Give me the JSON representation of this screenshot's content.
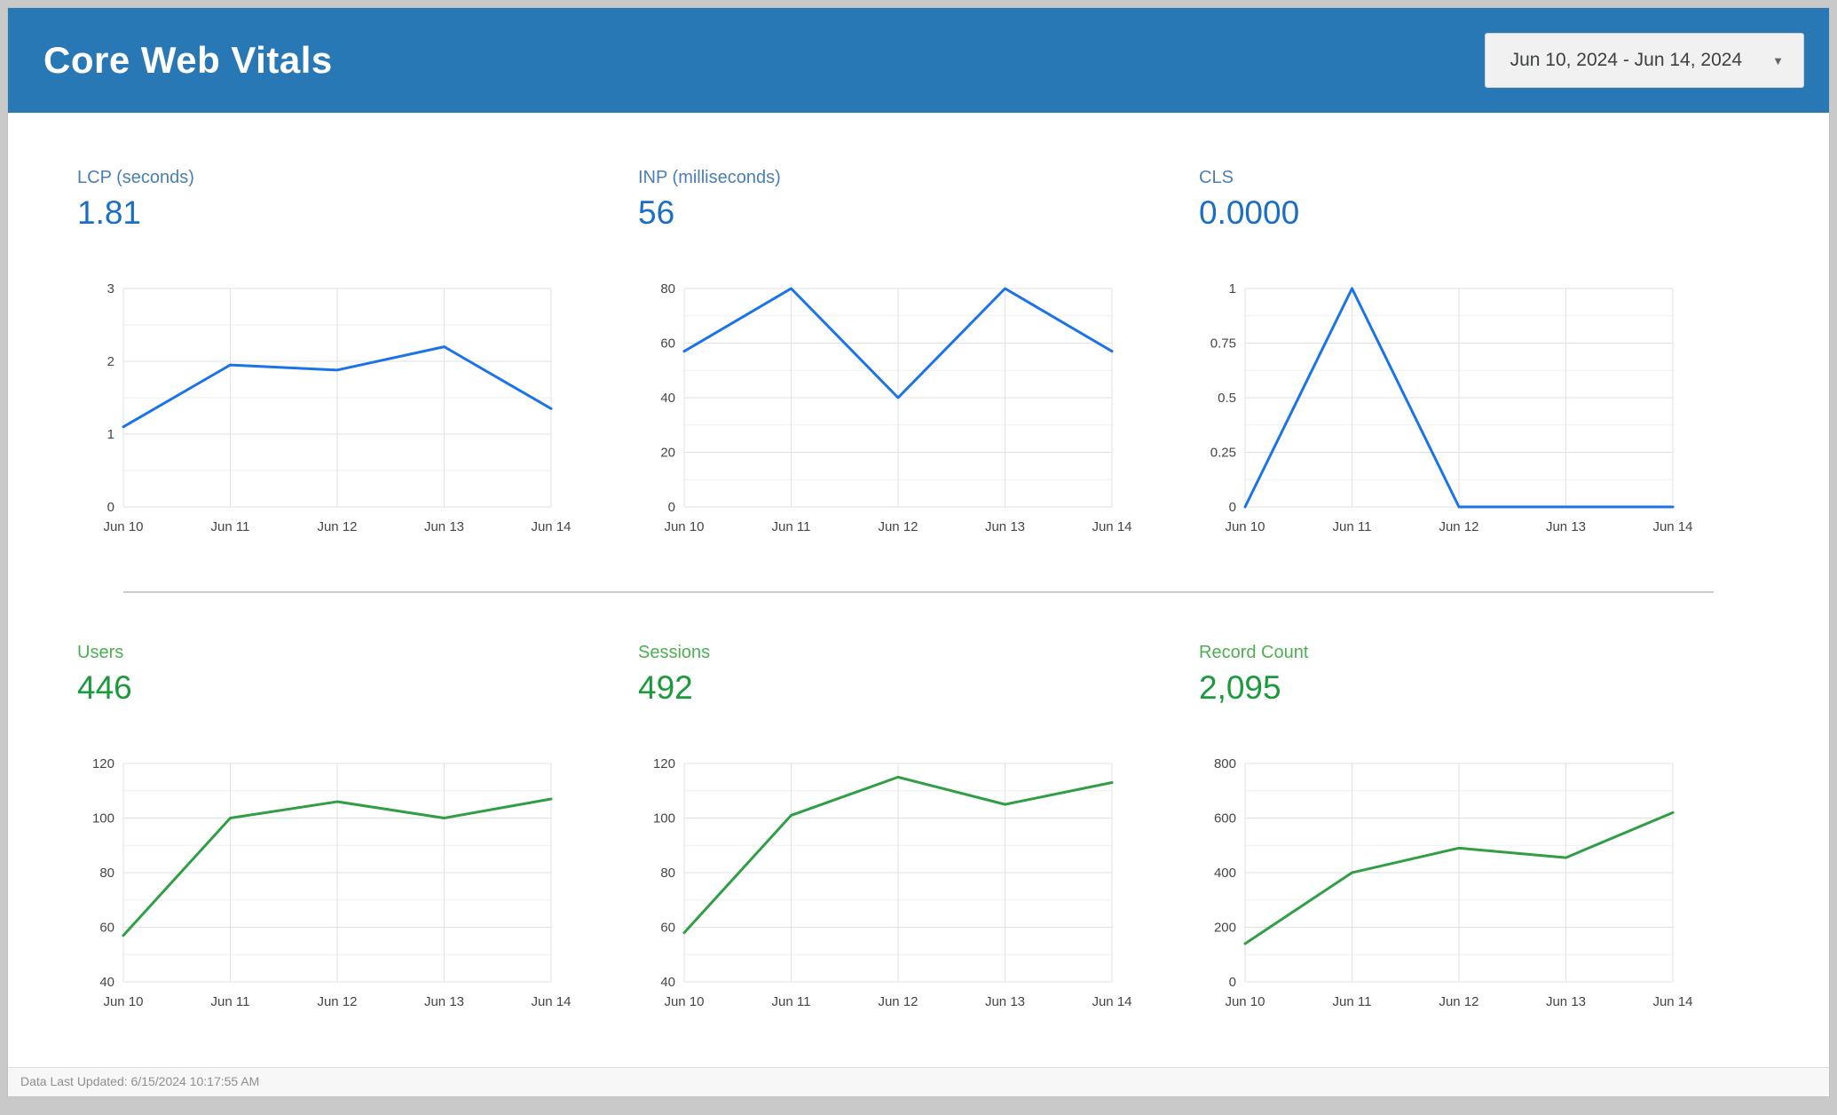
{
  "header": {
    "title": "Core Web Vitals",
    "date_range": "Jun 10, 2024 - Jun 14, 2024"
  },
  "footer": {
    "last_updated": "Data Last Updated: 6/15/2024 10:17:55 AM"
  },
  "colors": {
    "header_bg": "#2878b5",
    "blue_label": "#4a7fb5",
    "blue_value": "#1a6fc4",
    "blue_line": "#1a73e8",
    "green_label": "#4caf50",
    "green_value": "#1b9a3c",
    "green_line": "#2f9e44",
    "gridline": "#e2e2e2"
  },
  "chart_data": [
    {
      "type": "line",
      "title": "LCP (seconds)",
      "metric_value": "1.81",
      "x": [
        "Jun 10",
        "Jun 11",
        "Jun 12",
        "Jun 13",
        "Jun 14"
      ],
      "values": [
        1.1,
        1.95,
        1.88,
        2.2,
        1.35
      ],
      "ylim": [
        0,
        3
      ],
      "yticks": [
        "0",
        "1",
        "2",
        "3"
      ],
      "line_color": "#1a73e8",
      "grid": true,
      "legend": "none"
    },
    {
      "type": "line",
      "title": "INP (milliseconds)",
      "metric_value": "56",
      "x": [
        "Jun 10",
        "Jun 11",
        "Jun 12",
        "Jun 13",
        "Jun 14"
      ],
      "values": [
        57,
        80,
        40,
        80,
        57
      ],
      "ylim": [
        0,
        80
      ],
      "yticks": [
        "0",
        "20",
        "40",
        "60",
        "80"
      ],
      "line_color": "#1a73e8",
      "grid": true,
      "legend": "none"
    },
    {
      "type": "line",
      "title": "CLS",
      "metric_value": "0.0000",
      "x": [
        "Jun 10",
        "Jun 11",
        "Jun 12",
        "Jun 13",
        "Jun 14"
      ],
      "values": [
        0,
        1,
        0,
        0,
        0
      ],
      "ylim": [
        0,
        1
      ],
      "yticks": [
        "0",
        "0.25",
        "0.5",
        "0.75",
        "1"
      ],
      "line_color": "#1a73e8",
      "grid": true,
      "legend": "none"
    },
    {
      "type": "line",
      "title": "Users",
      "metric_value": "446",
      "x": [
        "Jun 10",
        "Jun 11",
        "Jun 12",
        "Jun 13",
        "Jun 14"
      ],
      "values": [
        57,
        100,
        106,
        100,
        107
      ],
      "ylim": [
        40,
        120
      ],
      "yticks": [
        "40",
        "60",
        "80",
        "100",
        "120"
      ],
      "line_color": "#2f9e44",
      "grid": true,
      "legend": "none"
    },
    {
      "type": "line",
      "title": "Sessions",
      "metric_value": "492",
      "x": [
        "Jun 10",
        "Jun 11",
        "Jun 12",
        "Jun 13",
        "Jun 14"
      ],
      "values": [
        58,
        101,
        115,
        105,
        113
      ],
      "ylim": [
        40,
        120
      ],
      "yticks": [
        "40",
        "60",
        "80",
        "100",
        "120"
      ],
      "line_color": "#2f9e44",
      "grid": true,
      "legend": "none"
    },
    {
      "type": "line",
      "title": "Record Count",
      "metric_value": "2,095",
      "x": [
        "Jun 10",
        "Jun 11",
        "Jun 12",
        "Jun 13",
        "Jun 14"
      ],
      "values": [
        140,
        400,
        490,
        455,
        620
      ],
      "ylim": [
        0,
        800
      ],
      "yticks": [
        "0",
        "200",
        "400",
        "600",
        "800"
      ],
      "line_color": "#2f9e44",
      "grid": true,
      "legend": "none"
    }
  ]
}
